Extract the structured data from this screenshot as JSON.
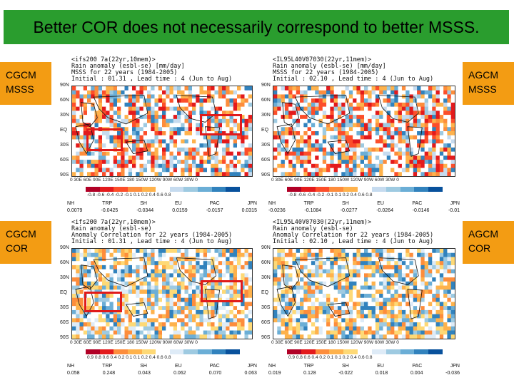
{
  "title": "Better COR does not necessarily correspond to better MSSS.",
  "labels": {
    "cgcm_msss": [
      "CGCM",
      "MSSS"
    ],
    "agcm_msss": [
      "AGCM",
      "MSSS"
    ],
    "cgcm_cor": [
      "CGCM",
      "COR"
    ],
    "agcm_cor": [
      "AGCM",
      "COR"
    ]
  },
  "panels": {
    "tl": {
      "header": [
        "<ifs200 7a(22yr,10mem)>",
        "Rain anomaly (esbl-se) [mm/day]",
        "MSSS for 22 years (1984-2005)",
        "Initial : 01.31 , Lead time : 4 (Jun to Aug)"
      ],
      "colorbar_ticks": "-0.8 -0.6 -0.4 -0.2 -0.1  0.1  0.2  0.4  0.6  0.8",
      "stats_names": [
        "NH",
        "TRP",
        "SH",
        "EU",
        "PAC",
        "JPN"
      ],
      "stats_values": [
        "0.0079",
        "-0.0425",
        "-0.0344",
        "0.0159",
        "-0.0157",
        "0.0315"
      ]
    },
    "tr": {
      "header": [
        "<IL95L40V07030(22yr,11mem)>",
        "Rain anomaly (esbl-se) [mm/day]",
        "MSSS for 22 years (1984-2005)",
        "Initial : 02.10 , Lead time : 4 (Jun to Aug)"
      ],
      "colorbar_ticks": "-0.8 -0.6 -0.4 -0.2 -0.1  0.1  0.2  0.4  0.6  0.8",
      "stats_names": [
        "NH",
        "TRP",
        "SH",
        "EU",
        "PAC",
        "JPN"
      ],
      "stats_values": [
        "-0.0236",
        "-0.1084",
        "-0.0277",
        "-0.0264",
        "-0.0146",
        "-0.01"
      ]
    },
    "bl": {
      "header": [
        "<ifs200 7a(22yr,10mem)>",
        "Rain anomaly (esbl-se)",
        "Anomaly Correlation for 22 years (1984-2005)",
        "Initial : 01.31 , Lead time : 4 (Jun to Aug)"
      ],
      "colorbar_ticks": "0.9  0.8  0.6  0.4  0.2  0.1  0.1  0.2  0.4  0.6  0.8",
      "stats_names": [
        "NH",
        "TRP",
        "SH",
        "EU",
        "PAC",
        "JPN"
      ],
      "stats_values": [
        "0.058",
        "0.248",
        "0.043",
        "0.062",
        "0.070",
        "0.063"
      ]
    },
    "br": {
      "header": [
        "<IL95L40V07030(22yr,11mem)>",
        "Rain anomaly (esbl-se)",
        "Anomaly Correlation for 22 years (1984-2005)",
        "Initial : 02.10 , Lead time : 4 (Jun to Aug)"
      ],
      "colorbar_ticks": "0.9  0.8  0.6  0.4  0.2  0.1  0.1  0.2  0.4  0.6  0.8",
      "stats_names": [
        "NH",
        "TRP",
        "SH",
        "EU",
        "PAC",
        "JPN"
      ],
      "stats_values": [
        "0.019",
        "0.128",
        "-0.022",
        "0.018",
        "0.004",
        "-0.036"
      ]
    }
  },
  "lat_labels": [
    "90N",
    "60N",
    "30N",
    "EQ",
    "30S",
    "60S",
    "90S"
  ],
  "lon_labels": "0   30E  60E  90E  120E 150E  180  150W 120W  90W  60W  30W   0",
  "colors": {
    "title_bg": "#2a9d2e",
    "label_bg": "#f39c13",
    "highlight": "#e01b1b",
    "msss_scale": [
      "#b10026",
      "#e31a1c",
      "#fc4e2a",
      "#fd8d3c",
      "#feb24c",
      "#ffffff",
      "#c6dbef",
      "#9ecae1",
      "#6baed6",
      "#3182bd",
      "#08519c"
    ],
    "cor_scale": [
      "#b10026",
      "#e31a1c",
      "#fd8d3c",
      "#feb24c",
      "#fed976",
      "#ffffff",
      "#deebf7",
      "#9ecae1",
      "#6baed6",
      "#3182bd",
      "#08519c"
    ]
  }
}
